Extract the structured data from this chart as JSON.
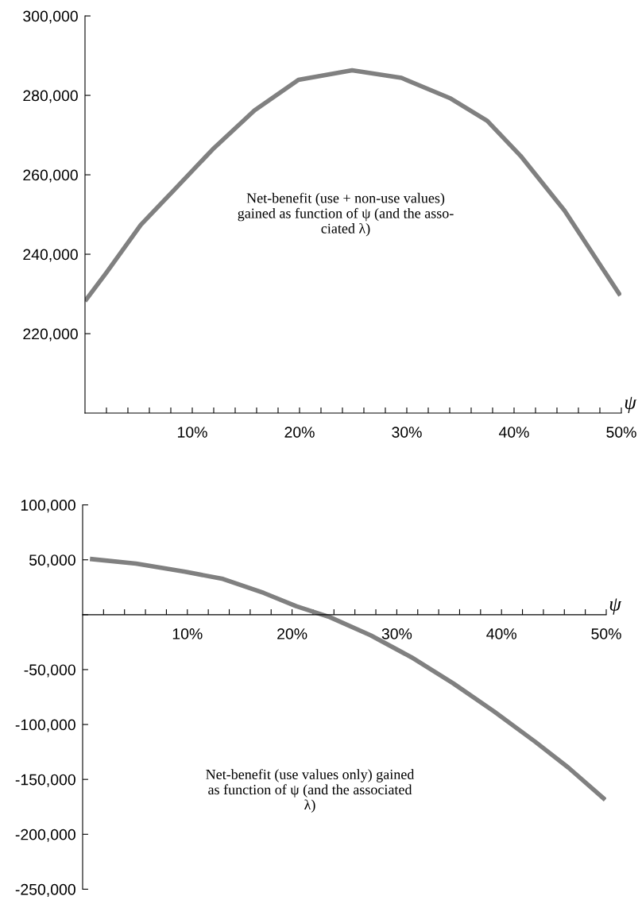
{
  "chart_data": [
    {
      "type": "line",
      "xlabel": "ψ",
      "annotations": [
        "Net-benefit (use + non-use values)\ngained as function of ψ (and the asso-\nciated λ)"
      ],
      "x": [
        0,
        2,
        5.2,
        8.1,
        11.9,
        15.8,
        19.9,
        24.9,
        29.5,
        34.1,
        37.5,
        40.6,
        44.7,
        49.9
      ],
      "series": [
        {
          "color": "#808080",
          "values": [
            228200,
            235400,
            247400,
            255600,
            266400,
            276200,
            283900,
            286300,
            284400,
            279200,
            273600,
            264800,
            251000,
            229600
          ]
        }
      ],
      "xlim": [
        0,
        50
      ],
      "ylim": [
        200000,
        300000
      ],
      "xticks": [
        {
          "value": 2,
          "label": null
        },
        {
          "value": 4,
          "label": null
        },
        {
          "value": 6,
          "label": null
        },
        {
          "value": 8,
          "label": null
        },
        {
          "value": 10,
          "label": "10%"
        },
        {
          "value": 12,
          "label": null
        },
        {
          "value": 14,
          "label": null
        },
        {
          "value": 16,
          "label": null
        },
        {
          "value": 18,
          "label": null
        },
        {
          "value": 20,
          "label": "20%"
        },
        {
          "value": 22,
          "label": null
        },
        {
          "value": 24,
          "label": null
        },
        {
          "value": 26,
          "label": null
        },
        {
          "value": 28,
          "label": null
        },
        {
          "value": 30,
          "label": "30%"
        },
        {
          "value": 32,
          "label": null
        },
        {
          "value": 34,
          "label": null
        },
        {
          "value": 36,
          "label": null
        },
        {
          "value": 38,
          "label": null
        },
        {
          "value": 40,
          "label": "40%"
        },
        {
          "value": 42,
          "label": null
        },
        {
          "value": 44,
          "label": null
        },
        {
          "value": 46,
          "label": null
        },
        {
          "value": 48,
          "label": null
        },
        {
          "value": 50,
          "label": "50%"
        }
      ],
      "yticks": [
        {
          "value": 220000,
          "label": "220,000"
        },
        {
          "value": 240000,
          "label": "240,000"
        },
        {
          "value": 260000,
          "label": "260,000"
        },
        {
          "value": 280000,
          "label": "280,000"
        },
        {
          "value": 300000,
          "label": "300,000"
        }
      ],
      "grid": false,
      "legend": false
    },
    {
      "type": "line",
      "xlabel": "ψ",
      "annotations": [
        "Net-benefit (use values only) gained\nas function of ψ (and the associated\nλ)"
      ],
      "x": [
        0.7,
        5.1,
        9.8,
        13.4,
        17.3,
        20.4,
        23.6,
        27.5,
        31.4,
        35.4,
        39.3,
        43.2,
        46.4,
        49.9
      ],
      "series": [
        {
          "color": "#808080",
          "values": [
            50800,
            46500,
            39100,
            32600,
            19800,
            7700,
            -2200,
            -18700,
            -38800,
            -62600,
            -88200,
            -115600,
            -139400,
            -168600
          ]
        }
      ],
      "xlim": [
        0,
        50
      ],
      "ylim": [
        -250000,
        100000
      ],
      "xticks": [
        {
          "value": 2,
          "label": null
        },
        {
          "value": 4,
          "label": null
        },
        {
          "value": 6,
          "label": null
        },
        {
          "value": 8,
          "label": null
        },
        {
          "value": 10,
          "label": "10%"
        },
        {
          "value": 12,
          "label": null
        },
        {
          "value": 14,
          "label": null
        },
        {
          "value": 16,
          "label": null
        },
        {
          "value": 18,
          "label": null
        },
        {
          "value": 20,
          "label": "20%"
        },
        {
          "value": 22,
          "label": null
        },
        {
          "value": 24,
          "label": null
        },
        {
          "value": 26,
          "label": null
        },
        {
          "value": 28,
          "label": null
        },
        {
          "value": 30,
          "label": "30%"
        },
        {
          "value": 32,
          "label": null
        },
        {
          "value": 34,
          "label": null
        },
        {
          "value": 36,
          "label": null
        },
        {
          "value": 38,
          "label": null
        },
        {
          "value": 40,
          "label": "40%"
        },
        {
          "value": 42,
          "label": null
        },
        {
          "value": 44,
          "label": null
        },
        {
          "value": 46,
          "label": null
        },
        {
          "value": 48,
          "label": null
        },
        {
          "value": 50,
          "label": "50%"
        }
      ],
      "yticks": [
        {
          "value": -250000,
          "label": "-250,000"
        },
        {
          "value": -200000,
          "label": "-200,000"
        },
        {
          "value": -150000,
          "label": "-150,000"
        },
        {
          "value": -100000,
          "label": "-100,000"
        },
        {
          "value": -50000,
          "label": "-50,000"
        },
        {
          "value": 0,
          "label": null
        },
        {
          "value": 50000,
          "label": "50,000"
        },
        {
          "value": 100000,
          "label": "100,000"
        }
      ],
      "grid": false,
      "legend": false
    }
  ]
}
